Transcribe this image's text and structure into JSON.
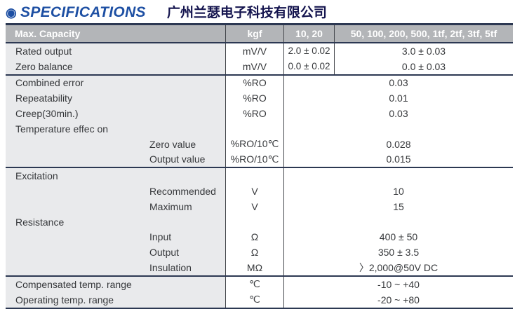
{
  "header": {
    "bullet": "◉",
    "title": "SPECIFICATIONS",
    "company": "广州兰瑟电子科技有限公司"
  },
  "colors": {
    "title_blue": "#1d4fa3",
    "company_navy": "#14144e",
    "header_bg": "#b3b5b8",
    "header_text": "#ffffff",
    "col1_bg": "#e9eaec",
    "heavy_line": "#2c3852",
    "thin_line": "#43464b",
    "text": "#36383b"
  },
  "table": {
    "columns": [
      "Max. Capacity",
      "kgf",
      "10, 20",
      "50, 100, 200, 500, 1tf, 2tf, 3tf, 5tf"
    ],
    "rows": [
      {
        "label": "Rated output",
        "indent": false,
        "unit": "mV/V",
        "value_small": "2.0 ± 0.02",
        "value_large": "3.0 ± 0.03"
      },
      {
        "label": "Zero balance",
        "indent": false,
        "unit": "mV/V",
        "value_small": "0.0 ± 0.02",
        "value_large": "0.0 ± 0.03"
      },
      {
        "label": "Combined error",
        "indent": false,
        "unit": "%RO",
        "value": "0.03",
        "heavy_top": true
      },
      {
        "label": "Repeatability",
        "indent": false,
        "unit": "%RO",
        "value": "0.01"
      },
      {
        "label": "Creep(30min.)",
        "indent": false,
        "unit": "%RO",
        "value": "0.03"
      },
      {
        "label": "Temperature effec on",
        "indent": false,
        "unit": "",
        "value": ""
      },
      {
        "label": "Zero value",
        "indent": true,
        "unit": "%RO/10℃",
        "value": "0.028"
      },
      {
        "label": "Output value",
        "indent": true,
        "unit": "%RO/10℃",
        "value": "0.015"
      },
      {
        "label": "Excitation",
        "indent": false,
        "unit": "",
        "value": "",
        "heavy_top": true
      },
      {
        "label": "Recommended",
        "indent": true,
        "unit": "V",
        "value": "10"
      },
      {
        "label": "Maximum",
        "indent": true,
        "unit": "V",
        "value": "15"
      },
      {
        "label": "Resistance",
        "indent": false,
        "unit": "",
        "value": ""
      },
      {
        "label": "Input",
        "indent": true,
        "unit": "Ω",
        "value": "400 ± 50"
      },
      {
        "label": "Output",
        "indent": true,
        "unit": "Ω",
        "value": "350 ± 3.5"
      },
      {
        "label": "Insulation",
        "indent": true,
        "unit": "MΩ",
        "value": "〉2,000@50V DC"
      },
      {
        "label": "Compensated temp. range",
        "indent": false,
        "unit": "℃",
        "value": "-10 ~ +40",
        "heavy_top": true
      },
      {
        "label": "Operating temp. range",
        "indent": false,
        "unit": "℃",
        "value": "-20 ~ +80"
      }
    ]
  }
}
